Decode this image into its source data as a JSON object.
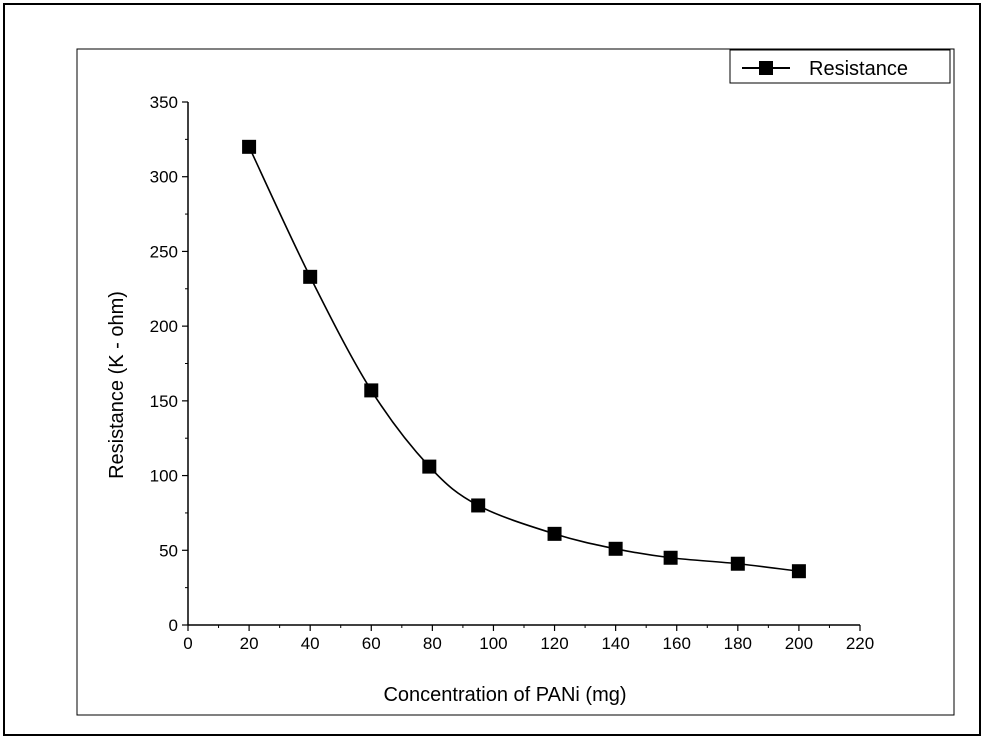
{
  "chart_data": {
    "type": "line",
    "xlabel": "Concentration of PANi (mg)",
    "ylabel": "Resistance (K - ohm)",
    "xlim": [
      0,
      220
    ],
    "ylim": [
      0,
      350
    ],
    "x_ticks": [
      0,
      20,
      40,
      60,
      80,
      100,
      120,
      140,
      160,
      180,
      200,
      220
    ],
    "y_ticks": [
      0,
      50,
      100,
      150,
      200,
      250,
      300,
      350
    ],
    "grid": false,
    "legend_position": "top-right",
    "series": [
      {
        "name": "Resistance",
        "marker": "square",
        "color": "#000000",
        "x": [
          20,
          40,
          60,
          79,
          95,
          120,
          140,
          158,
          180,
          200
        ],
        "y": [
          320,
          233,
          157,
          106,
          80,
          61,
          51,
          45,
          41,
          36
        ]
      }
    ]
  }
}
